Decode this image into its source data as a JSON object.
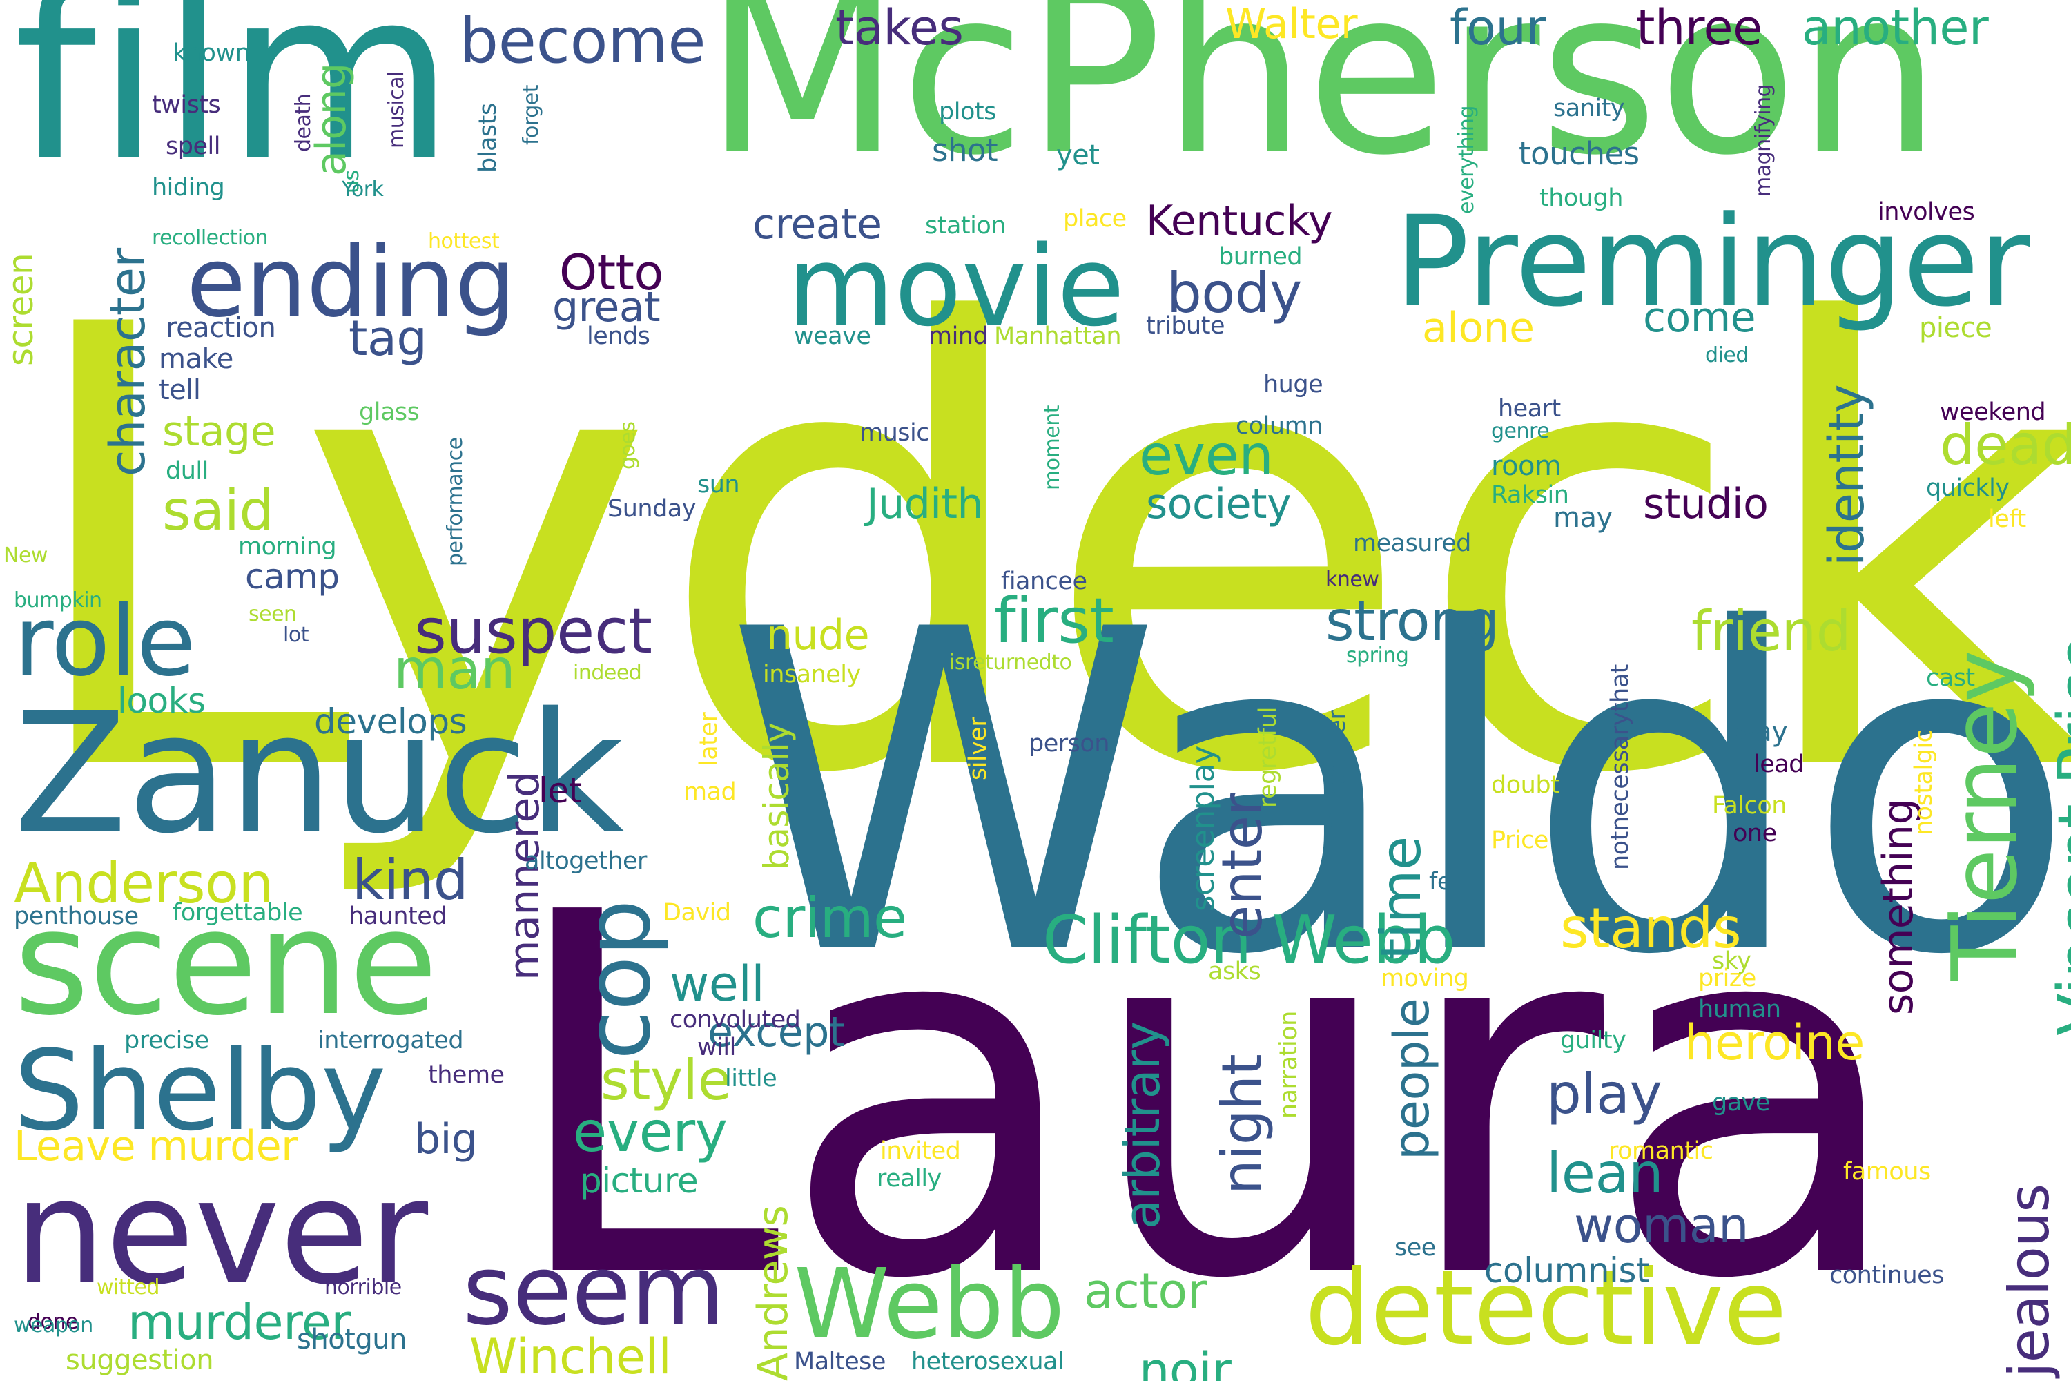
{
  "palette": {
    "dark_purple": "#440154",
    "indigo": "#472d7b",
    "blue": "#3b528b",
    "steel": "#2c728e",
    "teal": "#21918c",
    "sea_green": "#28ae80",
    "green": "#5ec962",
    "lime": "#addc30",
    "yellow_green": "#c8e020",
    "yellow": "#fde725"
  },
  "words": [
    "Lydecker",
    "Waldo",
    "Laura",
    "McPherson",
    "film",
    "Preminger",
    "movie",
    "ending",
    "Zanuck",
    "scene",
    "Shelby",
    "never",
    "role",
    "Tierney",
    "Vincent Price",
    "Clifton Webb",
    "Webb",
    "detective",
    "Anderson",
    "seem",
    "cop",
    "suspect",
    "become",
    "takes",
    "Walter",
    "four",
    "three",
    "another",
    "Kentucky",
    "create",
    "Otto",
    "great",
    "body",
    "tag",
    "character",
    "along",
    "said",
    "stage",
    "camp",
    "man",
    "strong",
    "first",
    "even",
    "society",
    "Judith",
    "identity",
    "studio",
    "friend",
    "dead",
    "come",
    "alone",
    "crime",
    "well",
    "style",
    "every",
    "heroine",
    "play",
    "lean",
    "woman",
    "people",
    "night",
    "arbitrary",
    "enter",
    "time",
    "mannered",
    "basically",
    "nude",
    "kind",
    "stands",
    "murderer",
    "actor",
    "noir",
    "Winchell",
    "Andrews",
    "Leave murder",
    "big",
    "except",
    "picture",
    "jealous",
    "something",
    "columnist",
    "looks",
    "develops",
    "let",
    "screen",
    "reaction",
    "make",
    "tell",
    "lends",
    "weave",
    "mind",
    "Manhattan",
    "tribute",
    "piece",
    "died",
    "weekend",
    "quickly",
    "left",
    "heart",
    "genre",
    "room",
    "Raksin",
    "may",
    "music",
    "sun",
    "Sunday",
    "glass",
    "dull",
    "morning",
    "New",
    "bumpkin",
    "seen",
    "lot",
    "indeed",
    "insanely",
    "isreturnedto",
    "spring",
    "cast",
    "known",
    "twists",
    "spell",
    "hiding",
    "death",
    "musical",
    "us",
    "York",
    "blasts",
    "forget",
    "recollection",
    "hottest",
    "station",
    "place",
    "burned",
    "plots",
    "shot",
    "yet",
    "touches",
    "though",
    "sanity",
    "everything",
    "magnifying",
    "involves",
    "measured",
    "fiancee",
    "knew",
    "column",
    "huge",
    "moment",
    "performance",
    "goes",
    "penthouse",
    "forgettable",
    "haunted",
    "altogether",
    "David",
    "precise",
    "interrogated",
    "theme",
    "convoluted",
    "will",
    "little",
    "asks",
    "moving",
    "prize",
    "human",
    "guilty",
    "felt",
    "lead",
    "way",
    "one",
    "doubt",
    "Falcon",
    "Price",
    "person",
    "silver",
    "regretful",
    "Carpenter",
    "later",
    "mad",
    "notnecessarythat",
    "nostalgic",
    "sky",
    "narration",
    "gave",
    "romantic",
    "famous",
    "invited",
    "really",
    "see",
    "continues",
    "Maltese",
    "heterosexual",
    "shotgun",
    "suggestion",
    "horrible",
    "done",
    "witted",
    "weapon",
    "screenplay"
  ]
}
